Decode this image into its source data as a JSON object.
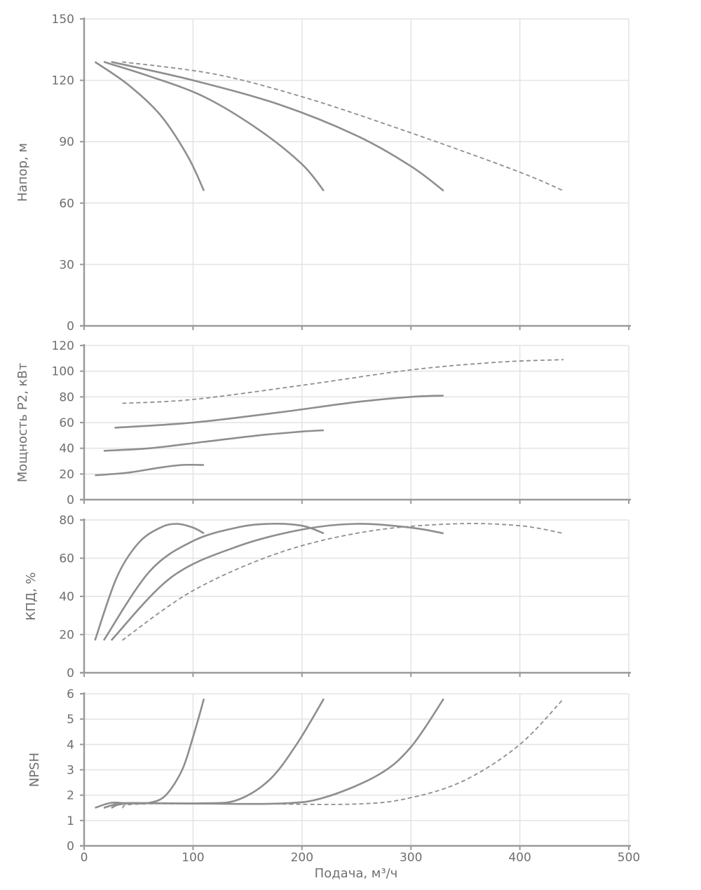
{
  "chart_data": {
    "type": "line",
    "x_label": "Подача, м³/ч",
    "x_ticks": [
      "0",
      "100",
      "200",
      "300",
      "400",
      "500"
    ],
    "xlim": [
      0,
      500
    ],
    "panels": [
      {
        "id": "head",
        "ylabel": "Напор, м",
        "ylim": [
          0,
          150
        ],
        "y_ticks": [
          0,
          30,
          60,
          90,
          120,
          150
        ],
        "series": [
          {
            "name": "curve-1",
            "style": "solid",
            "points": [
              [
                10,
                129
              ],
              [
                40,
                118
              ],
              [
                70,
                103
              ],
              [
                95,
                83
              ],
              [
                110,
                66
              ]
            ]
          },
          {
            "name": "curve-2",
            "style": "solid",
            "points": [
              [
                18,
                129
              ],
              [
                60,
                122
              ],
              [
                110,
                112
              ],
              [
                160,
                96
              ],
              [
                200,
                79
              ],
              [
                220,
                66
              ]
            ]
          },
          {
            "name": "curve-3",
            "style": "solid",
            "points": [
              [
                25,
                129
              ],
              [
                100,
                120
              ],
              [
                180,
                108
              ],
              [
                250,
                93
              ],
              [
                300,
                78
              ],
              [
                330,
                66
              ]
            ]
          },
          {
            "name": "curve-4",
            "style": "dashed",
            "points": [
              [
                35,
                129
              ],
              [
                120,
                123
              ],
              [
                200,
                112
              ],
              [
                280,
                98
              ],
              [
                360,
                83
              ],
              [
                410,
                73
              ],
              [
                440,
                66
              ]
            ]
          }
        ]
      },
      {
        "id": "power",
        "ylabel": "Мощность P2, кВт",
        "ylim": [
          0,
          120
        ],
        "y_ticks": [
          0,
          20,
          40,
          60,
          80,
          100,
          120
        ],
        "series": [
          {
            "name": "curve-1",
            "style": "solid",
            "points": [
              [
                10,
                19
              ],
              [
                40,
                21
              ],
              [
                70,
                25
              ],
              [
                90,
                27
              ],
              [
                110,
                27
              ]
            ]
          },
          {
            "name": "curve-2",
            "style": "solid",
            "points": [
              [
                18,
                38
              ],
              [
                60,
                40
              ],
              [
                110,
                45
              ],
              [
                160,
                50
              ],
              [
                200,
                53
              ],
              [
                220,
                54
              ]
            ]
          },
          {
            "name": "curve-3",
            "style": "solid",
            "points": [
              [
                28,
                56
              ],
              [
                100,
                60
              ],
              [
                180,
                68
              ],
              [
                250,
                76
              ],
              [
                300,
                80
              ],
              [
                330,
                81
              ]
            ]
          },
          {
            "name": "curve-4",
            "style": "dashed",
            "points": [
              [
                35,
                75
              ],
              [
                100,
                78
              ],
              [
                200,
                89
              ],
              [
                300,
                101
              ],
              [
                380,
                107
              ],
              [
                440,
                109
              ]
            ]
          }
        ]
      },
      {
        "id": "efficiency",
        "ylabel": "КПД, %",
        "ylim": [
          0,
          80
        ],
        "y_ticks": [
          0,
          20,
          40,
          60,
          80
        ],
        "series": [
          {
            "name": "curve-1",
            "style": "solid",
            "points": [
              [
                10,
                17
              ],
              [
                30,
                50
              ],
              [
                50,
                68
              ],
              [
                70,
                76
              ],
              [
                85,
                78
              ],
              [
                100,
                76
              ],
              [
                110,
                73
              ]
            ]
          },
          {
            "name": "curve-2",
            "style": "solid",
            "points": [
              [
                18,
                17
              ],
              [
                60,
                53
              ],
              [
                100,
                69
              ],
              [
                140,
                76
              ],
              [
                170,
                78
              ],
              [
                200,
                77
              ],
              [
                220,
                73
              ]
            ]
          },
          {
            "name": "curve-3",
            "style": "solid",
            "points": [
              [
                25,
                17
              ],
              [
                80,
                50
              ],
              [
                140,
                66
              ],
              [
                200,
                75
              ],
              [
                250,
                78
              ],
              [
                300,
                76
              ],
              [
                330,
                73
              ]
            ]
          },
          {
            "name": "curve-4",
            "style": "dashed",
            "points": [
              [
                35,
                17
              ],
              [
                100,
                43
              ],
              [
                180,
                63
              ],
              [
                260,
                74
              ],
              [
                340,
                78
              ],
              [
                400,
                77
              ],
              [
                440,
                73
              ]
            ]
          }
        ]
      },
      {
        "id": "npsh",
        "ylabel": "NPSH",
        "ylim": [
          0,
          6
        ],
        "y_ticks": [
          0,
          1,
          2,
          3,
          4,
          5,
          6
        ],
        "series": [
          {
            "name": "curve-1",
            "style": "solid",
            "points": [
              [
                10,
                1.5
              ],
              [
                25,
                1.7
              ],
              [
                40,
                1.68
              ],
              [
                60,
                1.7
              ],
              [
                75,
                2.0
              ],
              [
                90,
                3.0
              ],
              [
                100,
                4.3
              ],
              [
                110,
                5.8
              ]
            ]
          },
          {
            "name": "curve-2",
            "style": "solid",
            "points": [
              [
                18,
                1.5
              ],
              [
                35,
                1.68
              ],
              [
                70,
                1.68
              ],
              [
                110,
                1.68
              ],
              [
                140,
                1.8
              ],
              [
                170,
                2.6
              ],
              [
                195,
                4.0
              ],
              [
                220,
                5.8
              ]
            ]
          },
          {
            "name": "curve-3",
            "style": "solid",
            "points": [
              [
                25,
                1.5
              ],
              [
                40,
                1.67
              ],
              [
                100,
                1.67
              ],
              [
                180,
                1.67
              ],
              [
                220,
                1.9
              ],
              [
                270,
                2.8
              ],
              [
                300,
                3.9
              ],
              [
                330,
                5.8
              ]
            ]
          },
          {
            "name": "curve-4",
            "style": "dashed",
            "points": [
              [
                35,
                1.5
              ],
              [
                50,
                1.65
              ],
              [
                150,
                1.66
              ],
              [
                250,
                1.65
              ],
              [
                300,
                1.9
              ],
              [
                350,
                2.6
              ],
              [
                400,
                4.0
              ],
              [
                440,
                5.8
              ]
            ]
          }
        ]
      }
    ]
  }
}
